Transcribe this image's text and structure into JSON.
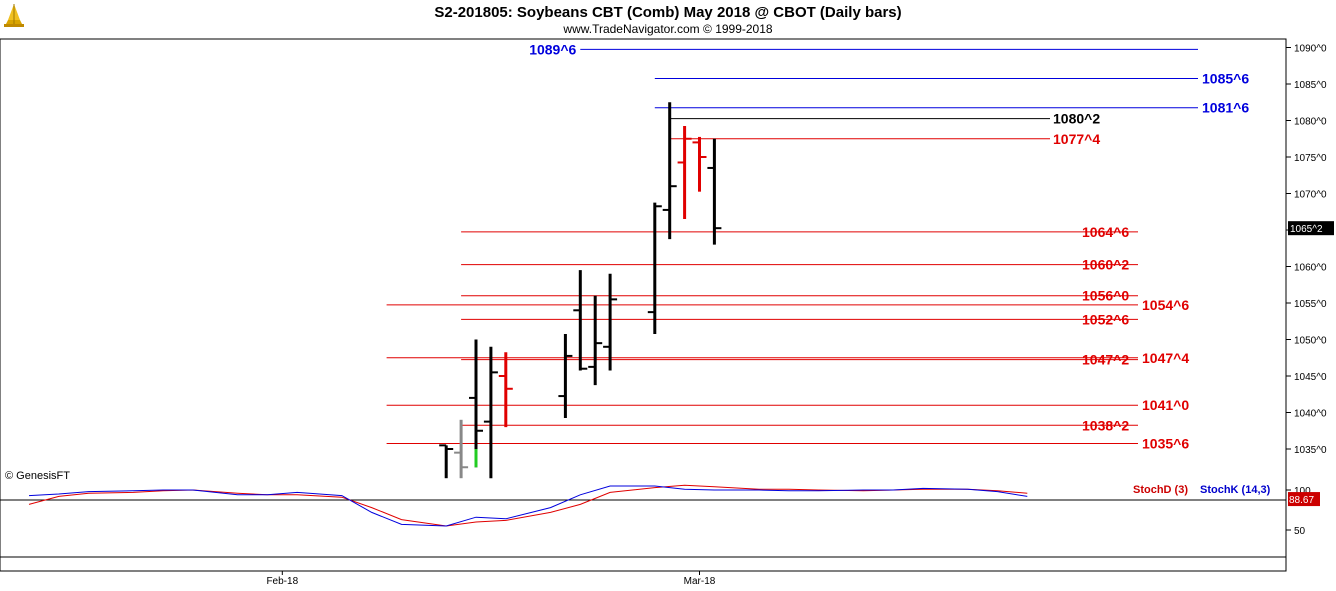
{
  "header": {
    "title": "S2-201805:  Soybeans CBT (Comb) May 2018 @ CBOT  (Daily bars)",
    "subtitle": "www.TradeNavigator.com © 1999-2018"
  },
  "copyright": "© GenesisFT",
  "colors": {
    "up_bar": "#000000",
    "down_bar": "#e00000",
    "blue_level": "#0000dd",
    "red_level": "#e00000",
    "stoch_d": "#cc0000",
    "stoch_k": "#0000cc",
    "current_tag": "#000000",
    "stoch_tag": "#cc0000"
  },
  "chart_data": [
    {
      "type": "ohlc",
      "title": "Soybeans CBT (Comb) May 2018 @ CBOT (Daily bars)",
      "y_axis": {
        "ylim": [
          1030,
          1092
        ],
        "ticks": [
          "1035^0",
          "1040^0",
          "1045^0",
          "1050^0",
          "1055^0",
          "1060^0",
          "1065^0",
          "1070^0",
          "1075^0",
          "1080^0",
          "1085^0",
          "1090^0"
        ],
        "tick_values": [
          1035,
          1040,
          1045,
          1050,
          1055,
          1060,
          1065,
          1070,
          1075,
          1080,
          1085,
          1090
        ],
        "position": "right"
      },
      "x_axis": {
        "labels": [
          {
            "text": "Feb-18",
            "date": "2018-02-01"
          },
          {
            "text": "Mar-18",
            "date": "2018-03-01"
          }
        ]
      },
      "current_price_label": "1065^2",
      "current_price": 1065.25,
      "bars": [
        {
          "date": "2018-02-12",
          "open": 1035.5,
          "high": 1035.5,
          "low": 1031.0,
          "close": 1035.0,
          "color": "black"
        },
        {
          "date": "2018-02-13",
          "open": 1034.5,
          "high": 1039.0,
          "low": 1031.0,
          "close": 1032.5,
          "color": "gray"
        },
        {
          "date": "2018-02-14",
          "open": 1042.0,
          "high": 1050.0,
          "low": 1032.5,
          "close": 1037.5,
          "color": "black"
        },
        {
          "date": "2018-02-15",
          "open": 1038.75,
          "high": 1049.0,
          "low": 1031.0,
          "close": 1045.5,
          "color": "black"
        },
        {
          "date": "2018-02-16",
          "open": 1045.0,
          "high": 1048.25,
          "low": 1038.0,
          "close": 1043.25,
          "color": "red"
        },
        {
          "date": "2018-02-20",
          "open": 1042.25,
          "high": 1050.75,
          "low": 1039.25,
          "close": 1047.75,
          "color": "black"
        },
        {
          "date": "2018-02-21",
          "open": 1054.0,
          "high": 1059.5,
          "low": 1045.75,
          "close": 1046.0,
          "color": "black"
        },
        {
          "date": "2018-02-22",
          "open": 1046.25,
          "high": 1056.0,
          "low": 1043.75,
          "close": 1049.5,
          "color": "black"
        },
        {
          "date": "2018-02-23",
          "open": 1049.0,
          "high": 1059.0,
          "low": 1045.75,
          "close": 1055.5,
          "color": "black"
        },
        {
          "date": "2018-02-26",
          "open": 1053.75,
          "high": 1068.75,
          "low": 1050.75,
          "close": 1068.25,
          "color": "black"
        },
        {
          "date": "2018-02-27",
          "open": 1067.75,
          "high": 1082.5,
          "low": 1063.75,
          "close": 1071.0,
          "color": "black"
        },
        {
          "date": "2018-02-28",
          "open": 1074.25,
          "high": 1079.25,
          "low": 1066.5,
          "close": 1077.5,
          "color": "red"
        },
        {
          "date": "2018-03-01",
          "open": 1077.0,
          "high": 1077.75,
          "low": 1070.25,
          "close": 1075.0,
          "color": "red"
        },
        {
          "date": "2018-03-02",
          "open": 1073.5,
          "high": 1077.5,
          "low": 1063.0,
          "close": 1065.25,
          "color": "black"
        }
      ],
      "marked_bar": {
        "date": "2018-02-14",
        "from": 1032.5,
        "to": 1035.0,
        "color": "green"
      },
      "levels": [
        {
          "label": "1089^6",
          "value": 1089.75,
          "color": "blue",
          "from": "2018-02-21",
          "label_side": "left",
          "line_to": "right"
        },
        {
          "label": "1085^6",
          "value": 1085.75,
          "color": "blue",
          "from": "2018-02-26",
          "label_side": "right"
        },
        {
          "label": "1081^6",
          "value": 1081.75,
          "color": "blue",
          "from": "2018-02-26",
          "label_side": "right"
        },
        {
          "label": "1080^2",
          "value": 1080.25,
          "color": "black",
          "from": "2018-02-27",
          "label_side": "mid"
        },
        {
          "label": "1077^4",
          "value": 1077.5,
          "color": "red",
          "from": "2018-02-27",
          "label_side": "mid"
        },
        {
          "label": "1064^6",
          "value": 1064.75,
          "color": "red",
          "from": "2018-02-13",
          "label_side": "mid"
        },
        {
          "label": "1060^2",
          "value": 1060.25,
          "color": "red",
          "from": "2018-02-13",
          "label_side": "mid"
        },
        {
          "label": "1056^0",
          "value": 1056.0,
          "color": "red",
          "from": "2018-02-13",
          "label_side": "mid"
        },
        {
          "label": "1054^6",
          "value": 1054.75,
          "color": "red",
          "from": "2018-02-08",
          "label_side": "right"
        },
        {
          "label": "1052^6",
          "value": 1052.75,
          "color": "red",
          "from": "2018-02-13",
          "label_side": "mid"
        },
        {
          "label": "1047^2",
          "value": 1047.25,
          "color": "red",
          "from": "2018-02-13",
          "label_side": "mid"
        },
        {
          "label": "1047^4",
          "value": 1047.5,
          "color": "red",
          "from": "2018-02-08",
          "label_side": "right"
        },
        {
          "label": "1041^0",
          "value": 1041.0,
          "color": "red",
          "from": "2018-02-08",
          "label_side": "right"
        },
        {
          "label": "1038^2",
          "value": 1038.25,
          "color": "red",
          "from": "2018-02-13",
          "label_side": "mid"
        },
        {
          "label": "1035^6",
          "value": 1035.75,
          "color": "red",
          "from": "2018-02-08",
          "label_side": "right"
        }
      ]
    },
    {
      "type": "line",
      "title": "",
      "y_axis": {
        "ylim": [
          0,
          120
        ],
        "ticks": [
          "50",
          "100"
        ],
        "tick_values": [
          50,
          100
        ],
        "position": "right"
      },
      "legend": [
        "StochD (3)",
        "StochK (14,3)"
      ],
      "legend_placement": "top-right",
      "last_value_label": "88.67",
      "last_value": 88.67,
      "series": [
        {
          "name": "StochD (3)",
          "color": "red",
          "values": [
            {
              "date": "2018-01-15",
              "value": 82
            },
            {
              "date": "2018-01-17",
              "value": 92
            },
            {
              "date": "2018-01-19",
              "value": 96
            },
            {
              "date": "2018-01-22",
              "value": 97
            },
            {
              "date": "2018-01-24",
              "value": 99
            },
            {
              "date": "2018-01-26",
              "value": 100
            },
            {
              "date": "2018-01-29",
              "value": 96
            },
            {
              "date": "2018-01-31",
              "value": 94
            },
            {
              "date": "2018-02-02",
              "value": 94
            },
            {
              "date": "2018-02-05",
              "value": 91
            },
            {
              "date": "2018-02-07",
              "value": 78
            },
            {
              "date": "2018-02-09",
              "value": 63
            },
            {
              "date": "2018-02-12",
              "value": 55
            },
            {
              "date": "2018-02-14",
              "value": 60
            },
            {
              "date": "2018-02-16",
              "value": 62
            },
            {
              "date": "2018-02-19",
              "value": 72
            },
            {
              "date": "2018-02-21",
              "value": 82
            },
            {
              "date": "2018-02-23",
              "value": 97
            },
            {
              "date": "2018-02-26",
              "value": 103
            },
            {
              "date": "2018-02-28",
              "value": 106
            },
            {
              "date": "2018-03-02",
              "value": 104
            },
            {
              "date": "2018-03-05",
              "value": 101
            },
            {
              "date": "2018-03-07",
              "value": 101
            },
            {
              "date": "2018-03-09",
              "value": 100
            },
            {
              "date": "2018-03-12",
              "value": 99
            },
            {
              "date": "2018-03-14",
              "value": 100
            },
            {
              "date": "2018-03-16",
              "value": 101
            },
            {
              "date": "2018-03-19",
              "value": 101
            },
            {
              "date": "2018-03-21",
              "value": 99
            },
            {
              "date": "2018-03-23",
              "value": 96
            }
          ]
        },
        {
          "name": "StochK (14,3)",
          "color": "blue",
          "values": [
            {
              "date": "2018-01-15",
              "value": 93
            },
            {
              "date": "2018-01-17",
              "value": 95
            },
            {
              "date": "2018-01-19",
              "value": 98
            },
            {
              "date": "2018-01-22",
              "value": 99
            },
            {
              "date": "2018-01-24",
              "value": 100
            },
            {
              "date": "2018-01-26",
              "value": 100
            },
            {
              "date": "2018-01-29",
              "value": 94
            },
            {
              "date": "2018-01-31",
              "value": 94
            },
            {
              "date": "2018-02-02",
              "value": 97
            },
            {
              "date": "2018-02-05",
              "value": 93
            },
            {
              "date": "2018-02-07",
              "value": 72
            },
            {
              "date": "2018-02-09",
              "value": 57
            },
            {
              "date": "2018-02-12",
              "value": 55
            },
            {
              "date": "2018-02-14",
              "value": 66
            },
            {
              "date": "2018-02-16",
              "value": 64
            },
            {
              "date": "2018-02-19",
              "value": 78
            },
            {
              "date": "2018-02-21",
              "value": 94
            },
            {
              "date": "2018-02-23",
              "value": 105
            },
            {
              "date": "2018-02-26",
              "value": 105
            },
            {
              "date": "2018-02-28",
              "value": 101
            },
            {
              "date": "2018-03-02",
              "value": 100
            },
            {
              "date": "2018-03-05",
              "value": 100
            },
            {
              "date": "2018-03-07",
              "value": 99
            },
            {
              "date": "2018-03-09",
              "value": 99
            },
            {
              "date": "2018-03-12",
              "value": 100
            },
            {
              "date": "2018-03-14",
              "value": 100
            },
            {
              "date": "2018-03-16",
              "value": 102
            },
            {
              "date": "2018-03-19",
              "value": 101
            },
            {
              "date": "2018-03-21",
              "value": 98
            },
            {
              "date": "2018-03-23",
              "value": 92
            }
          ]
        }
      ]
    }
  ]
}
